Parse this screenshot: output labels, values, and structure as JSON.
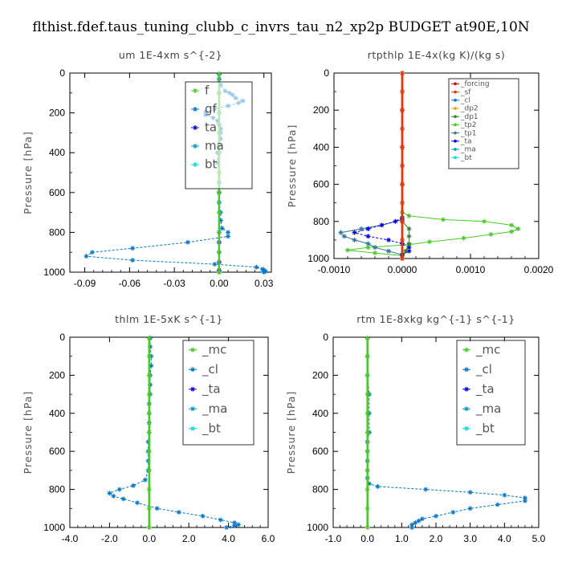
{
  "suptitle": "flthist.fdef.taus_tuning_clubb_c_invrs_tau_n2_xp2p  BUDGET at90E,10N",
  "colors": {
    "forcing": "#dd0000",
    "sf": "#ee3300",
    "cl": "#0077cc",
    "dp2": "#e8a800",
    "dp1": "#228822",
    "tp2": "#44cc22",
    "tp1": "#337799",
    "ta": "#0000ee",
    "ma": "#0099cc",
    "bt": "#00dddd",
    "mc": "#44cc22",
    "f": "#44cc22",
    "gf": "#0077cc"
  },
  "chart_data": [
    {
      "type": "line",
      "title": "um  1E-4xm s^{-2}",
      "ylabel": "Pressure [hPa]",
      "xlim": [
        -0.1,
        0.035
      ],
      "ylim": [
        1000,
        0
      ],
      "xticks": [
        -0.09,
        -0.06,
        -0.03,
        0.0,
        0.03
      ],
      "xtick_labels": [
        "-0.09",
        "-0.06",
        "-0.03",
        "0.00",
        "0.03"
      ],
      "yticks": [
        0,
        200,
        400,
        600,
        800,
        1000
      ],
      "ytick_labels": [
        "0",
        "200",
        "400",
        "600",
        "800",
        "1000"
      ],
      "legend": [
        "f",
        "gf",
        "ta",
        "ma",
        "bt"
      ],
      "series": [
        {
          "key": "gf",
          "p": [
            5,
            30,
            60,
            90,
            100,
            110,
            125,
            140,
            150,
            165,
            180,
            195,
            210,
            225,
            240,
            260,
            280,
            300,
            330,
            360,
            400,
            450,
            500,
            550,
            600,
            650,
            700,
            740,
            780,
            800,
            820,
            850,
            880,
            900,
            920,
            940,
            960,
            975,
            985,
            990,
            995,
            1000
          ],
          "x": [
            0,
            0,
            0.001,
            0.004,
            0.007,
            0.009,
            0.011,
            0.016,
            0.013,
            0.006,
            -0.003,
            -0.009,
            -0.009,
            -0.004,
            -0.001,
            0.0,
            0.001,
            0.001,
            0.001,
            0.0,
            -0.001,
            -0.001,
            0,
            0,
            0,
            0,
            0.001,
            0.001,
            0.002,
            0.006,
            0.006,
            -0.021,
            -0.058,
            -0.085,
            -0.089,
            -0.058,
            -0.003,
            0.025,
            0.029,
            0.03,
            0.031,
            0.03
          ]
        },
        {
          "key": "ta",
          "p": [
            5,
            100,
            200,
            400,
            600,
            800,
            850,
            900,
            950,
            990,
            1000
          ],
          "x": [
            0,
            0,
            0,
            0,
            0,
            0,
            0,
            0,
            0,
            0,
            0
          ]
        },
        {
          "key": "f",
          "p": [
            5,
            100,
            200,
            300,
            400,
            500,
            600,
            700,
            800,
            900,
            1000
          ],
          "x": [
            0,
            0,
            0,
            0,
            0,
            0,
            0,
            0,
            0,
            0,
            0
          ]
        }
      ]
    },
    {
      "type": "line",
      "title": "rtpthlp  1E-4x(kg K)/(kg s)",
      "ylabel": "Pressure [hPa]",
      "xlim": [
        -0.001,
        0.002
      ],
      "ylim": [
        1000,
        0
      ],
      "xticks": [
        -0.001,
        0.0,
        0.001,
        0.002
      ],
      "xtick_labels": [
        "-0.0010",
        "0.0000",
        "0.0010",
        "0.0020"
      ],
      "yticks": [
        0,
        200,
        400,
        600,
        800,
        1000
      ],
      "ytick_labels": [
        "0",
        "200",
        "400",
        "600",
        "800",
        "1000"
      ],
      "legend": [
        "_forcing",
        "_sf",
        "_cl",
        "_dp2",
        "_dp1",
        "_tp2",
        "_tp1",
        "_ta",
        "_ma",
        "_bt"
      ],
      "series": [
        {
          "key": "tp2",
          "p": [
            750,
            770,
            790,
            800,
            820,
            840,
            855,
            870,
            890,
            910,
            925,
            940,
            955,
            970,
            985,
            1000
          ],
          "x": [
            0,
            0.0001,
            0.0006,
            0.0012,
            0.0016,
            0.0017,
            0.0016,
            0.0013,
            0.0009,
            0.0004,
            0.0001,
            -0.0005,
            -0.0008,
            -0.0004,
            0,
            0
          ]
        },
        {
          "key": "tp1",
          "p": [
            790,
            820,
            840,
            860,
            880,
            900,
            920,
            940,
            960,
            980,
            1000
          ],
          "x": [
            0,
            -0.0003,
            -0.0006,
            -0.0009,
            -0.00085,
            -0.0007,
            -0.0005,
            -0.0004,
            -0.0002,
            0,
            0
          ]
        },
        {
          "key": "ta",
          "p": [
            780,
            800,
            820,
            840,
            860,
            880,
            900,
            920,
            940,
            960,
            980,
            1000
          ],
          "x": [
            0,
            -0.0001,
            -0.0003,
            -0.0005,
            -0.0007,
            -0.0005,
            -0.0002,
            0,
            0.0001,
            0.0001,
            0,
            0
          ]
        },
        {
          "key": "dp1",
          "p": [
            800,
            840,
            880,
            920,
            960,
            1000
          ],
          "x": [
            0,
            0.0001,
            0.0001,
            0.0001,
            5e-05,
            0
          ]
        },
        {
          "key": "forcing",
          "p": [
            0,
            200,
            400,
            600,
            800,
            1000
          ],
          "x": [
            0,
            0,
            0,
            0,
            0,
            0
          ]
        },
        {
          "key": "sf",
          "p": [
            0,
            100,
            200,
            300,
            400,
            500,
            600,
            700,
            800,
            900,
            1000
          ],
          "x": [
            0,
            0,
            0,
            0,
            0,
            0,
            0,
            0,
            0,
            0,
            0
          ]
        }
      ]
    },
    {
      "type": "line",
      "title": "thlm  1E-5xK s^{-1}",
      "ylabel": "Pressure [hPa]",
      "xlim": [
        -4.0,
        6.0
      ],
      "ylim": [
        1000,
        0
      ],
      "xticks": [
        -4.0,
        -2.0,
        0.0,
        2.0,
        4.0,
        6.0
      ],
      "xtick_labels": [
        "-4.0",
        "-2.0",
        "0.0",
        "2.0",
        "4.0",
        "6.0"
      ],
      "yticks": [
        0,
        200,
        400,
        600,
        800,
        1000
      ],
      "ytick_labels": [
        "0",
        "200",
        "400",
        "600",
        "800",
        "1000"
      ],
      "legend": [
        "_mc",
        "_cl",
        "_ta",
        "_ma",
        "_bt"
      ],
      "series": [
        {
          "key": "cl",
          "p": [
            5,
            50,
            100,
            150,
            200,
            250,
            300,
            350,
            400,
            450,
            500,
            550,
            600,
            650,
            700,
            750,
            780,
            800,
            820,
            835,
            850,
            870,
            900,
            920,
            940,
            960,
            975,
            985,
            990,
            1000
          ],
          "x": [
            0.05,
            0.05,
            0.1,
            0.1,
            0.05,
            0.05,
            0.05,
            0.0,
            0.0,
            0.0,
            0.0,
            -0.05,
            -0.05,
            -0.05,
            -0.05,
            -0.2,
            -0.8,
            -1.5,
            -2.0,
            -1.8,
            -1.3,
            -0.6,
            0.4,
            1.5,
            2.7,
            3.6,
            4.3,
            4.5,
            4.3,
            3.9
          ]
        },
        {
          "key": "mc",
          "p": [
            5,
            100,
            200,
            300,
            400,
            500,
            600,
            700,
            800,
            900,
            1000
          ],
          "x": [
            0,
            0,
            0,
            0,
            0,
            0,
            0,
            0,
            0,
            0,
            0
          ]
        }
      ]
    },
    {
      "type": "line",
      "title": "rtm  1E-8xkg kg^{-1} s^{-1}",
      "ylabel": "Pressure [hPa]",
      "xlim": [
        -1.0,
        5.0
      ],
      "ylim": [
        1000,
        0
      ],
      "xticks": [
        -1.0,
        0.0,
        1.0,
        2.0,
        3.0,
        4.0,
        5.0
      ],
      "xtick_labels": [
        "-1.0",
        "0.0",
        "1.0",
        "2.0",
        "3.0",
        "4.0",
        "5.0"
      ],
      "yticks": [
        0,
        200,
        400,
        600,
        800,
        1000
      ],
      "ytick_labels": [
        "0",
        "200",
        "400",
        "600",
        "800",
        "1000"
      ],
      "legend": [
        "_mc",
        "_cl",
        "_ta",
        "_ma",
        "_bt"
      ],
      "series": [
        {
          "key": "cl",
          "p": [
            5,
            100,
            200,
            300,
            400,
            500,
            550,
            600,
            650,
            700,
            740,
            770,
            785,
            800,
            815,
            830,
            845,
            860,
            880,
            900,
            920,
            940,
            955,
            965,
            975,
            985,
            1000
          ],
          "x": [
            0,
            0,
            0,
            0.05,
            0.05,
            0.05,
            0,
            0,
            0,
            0,
            0,
            0.05,
            0.3,
            1.7,
            3.0,
            4.0,
            4.6,
            4.6,
            3.8,
            3.0,
            2.5,
            2.0,
            1.6,
            1.5,
            1.4,
            1.3,
            1.3
          ]
        },
        {
          "key": "mc",
          "p": [
            5,
            100,
            200,
            300,
            400,
            500,
            600,
            700,
            800,
            900,
            1000
          ],
          "x": [
            0,
            0,
            0,
            0,
            0,
            0,
            0,
            0,
            0,
            0,
            0
          ]
        }
      ]
    }
  ]
}
